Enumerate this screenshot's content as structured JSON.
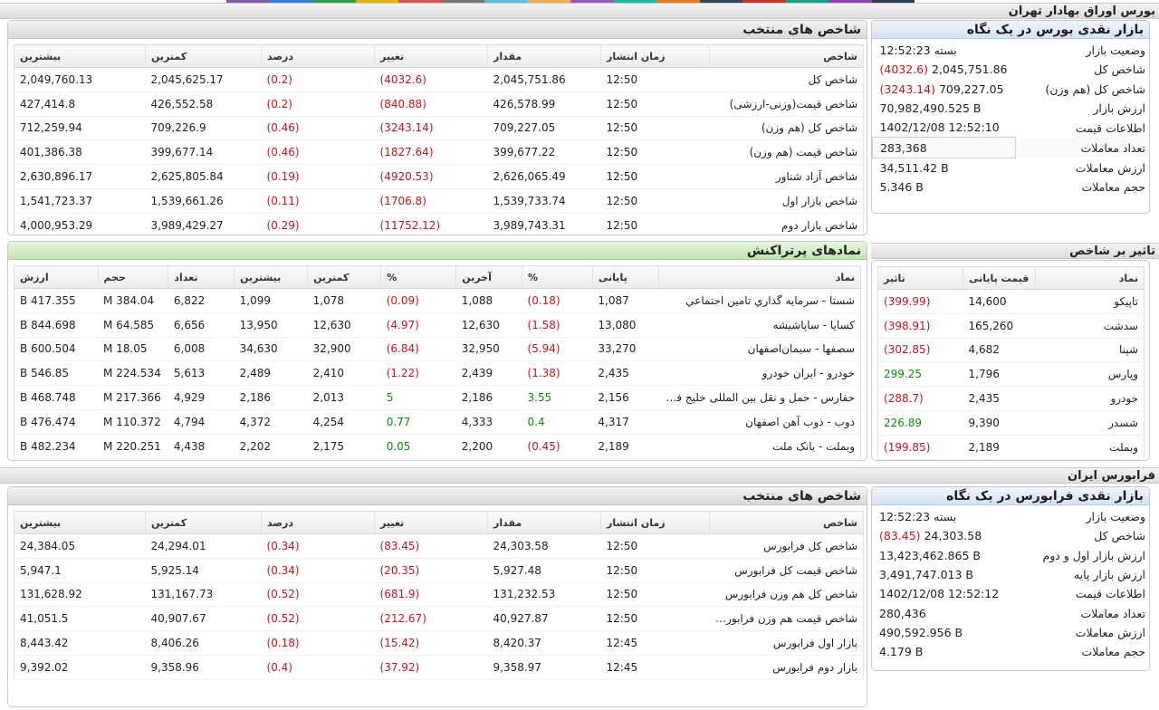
{
  "colors": {
    "strip": [
      "#7b5ea7",
      "#3b7dd8",
      "#2e9e4f",
      "#e0b400",
      "#d9534f",
      "#777777",
      "#5bc0de",
      "#f0ad4e",
      "#9b59b6",
      "#1abc9c",
      "#e67e22",
      "#34495e",
      "#c0392b",
      "#16a085",
      "#8e44ad",
      "#2c3e50"
    ],
    "negative": "#c4161c",
    "positive": "#0a8f0a"
  },
  "tse": {
    "bar_title": "بورس اوراق بهادار تهران",
    "glance": {
      "title": "بازار نقدی بورس در یک نگاه",
      "rows": [
        {
          "k": "وضعیت بازار",
          "v": "بسته 12:52:23",
          "chg": ""
        },
        {
          "k": "شاخص کل",
          "v": "2,045,751.86",
          "chg": "(4032.6)"
        },
        {
          "k": "شاخص کل (هم وزن)",
          "v": "709,227.05",
          "chg": "(3243.14)"
        },
        {
          "k": "ارزش بازار",
          "v": "70,982,490.525 B",
          "chg": ""
        },
        {
          "k": "اطلاعات قیمت",
          "v": "1402/12/08 12:52:10",
          "chg": ""
        },
        {
          "k": "تعداد معاملات",
          "v": "283,368",
          "chg": ""
        },
        {
          "k": "ارزش معاملات",
          "v": "34,511.42 B",
          "chg": ""
        },
        {
          "k": "حجم معاملات",
          "v": "5.346 B",
          "chg": ""
        }
      ]
    },
    "indices": {
      "title": "شاخص های منتخب",
      "headers": [
        "شاخص",
        "زمان انتشار",
        "مقدار",
        "تغییر",
        "درصد",
        "کمترین",
        "بیشترین"
      ],
      "rows": [
        [
          "شاخص کل",
          "12:50",
          "2,045,751.86",
          "(4032.6)",
          "(0.2)",
          "2,045,625.17",
          "2,049,760.13"
        ],
        [
          "شاخص قیمت(وزنی-ارزشی)",
          "12:50",
          "426,578.99",
          "(840.88)",
          "(0.2)",
          "426,552.58",
          "427,414.8"
        ],
        [
          "شاخص کل (هم وزن)",
          "12:50",
          "709,227.05",
          "(3243.14)",
          "(0.46)",
          "709,226.9",
          "712,259.94"
        ],
        [
          "شاخص قیمت (هم وزن)",
          "12:50",
          "399,677.22",
          "(1827.64)",
          "(0.46)",
          "399,677.14",
          "401,386.38"
        ],
        [
          "شاخص آزاد شناور",
          "12:50",
          "2,626,065.49",
          "(4920.53)",
          "(0.19)",
          "2,625,805.84",
          "2,630,896.17"
        ],
        [
          "شاخص بازار اول",
          "12:50",
          "1,539,733.74",
          "(1706.8)",
          "(0.11)",
          "1,539,661.26",
          "1,541,723.37"
        ],
        [
          "شاخص بازار دوم",
          "12:50",
          "3,989,743.31",
          "(11752.12)",
          "(0.29)",
          "3,989,429.27",
          "4,000,953.29"
        ]
      ]
    },
    "impact": {
      "bar_title": "تاثیر بر شاخص",
      "headers": [
        "نماد",
        "قیمت پایانی",
        "تاثیر"
      ],
      "rows": [
        [
          "تاپیکو",
          "14,600",
          "(399.99)"
        ],
        [
          "سدشت",
          "165,260",
          "(398.91)"
        ],
        [
          "شپنا",
          "4,682",
          "(302.85)"
        ],
        [
          "وپارس",
          "1,796",
          "299.25"
        ],
        [
          "خودرو",
          "2,435",
          "(288.7)"
        ],
        [
          "شسدر",
          "9,390",
          "226.89"
        ],
        [
          "وبملت",
          "2,189",
          "(199.85)"
        ]
      ]
    },
    "active": {
      "title": "نمادهای پرتراکنش",
      "headers": [
        "نماد",
        "پایانی",
        "%",
        "آخرین",
        "%",
        "کمترین",
        "بیشترین",
        "تعداد",
        "حجم",
        "ارزش"
      ],
      "rows": [
        [
          "شستا - سرمایه گذاري تامين اجتماعي",
          "1,087",
          "(0.18)",
          "1,088",
          "(0.09)",
          "1,078",
          "1,099",
          "6,822",
          "384.04 M",
          "417.355 B"
        ],
        [
          "کسایا - ساپاشیشه",
          "13,080",
          "(1.58)",
          "12,630",
          "(4.97)",
          "12,630",
          "13,950",
          "6,656",
          "64.585 M",
          "844.698 B"
        ],
        [
          "سصفها - سیمان‌اصفهان",
          "33,270",
          "(5.94)",
          "32,950",
          "(6.84)",
          "32,900",
          "34,630",
          "6,008",
          "18.05 M",
          "600.504 B"
        ],
        [
          "خودرو - ايران‌ خودرو",
          "2,435",
          "(1.38)",
          "2,439",
          "(1.22)",
          "2,410",
          "2,489",
          "5,613",
          "224.534 M",
          "546.85 B"
        ],
        [
          "حفارس - حمل و نقل بین المللی خلیج فارس",
          "2,156",
          "3.55",
          "2,186",
          "5",
          "2,013",
          "2,186",
          "4,929",
          "217.366 M",
          "468.748 B"
        ],
        [
          "ذوب - ذوب آهن اصفهان",
          "4,317",
          "0.4",
          "4,333",
          "0.77",
          "4,254",
          "4,372",
          "4,794",
          "110.372 M",
          "476.474 B"
        ],
        [
          "وبملت - بانک ملت",
          "2,189",
          "(0.45)",
          "2,200",
          "0.05",
          "2,175",
          "2,202",
          "4,438",
          "220.251 M",
          "482.234 B"
        ]
      ]
    }
  },
  "ifb": {
    "bar_title": "فرابورس ایران",
    "glance": {
      "title": "بازار نقدی فرابورس در یک نگاه",
      "rows": [
        {
          "k": "وضعیت بازار",
          "v": "بسته 12:52:23",
          "chg": ""
        },
        {
          "k": "شاخص کل",
          "v": "24,303.58",
          "chg": "(83.45)"
        },
        {
          "k": "ارزش بازار اول و دوم",
          "v": "13,423,462.865 B",
          "chg": ""
        },
        {
          "k": "ارزش بازار پایه",
          "v": "3,491,747.013 B",
          "chg": ""
        },
        {
          "k": "اطلاعات قیمت",
          "v": "1402/12/08 12:52:12",
          "chg": ""
        },
        {
          "k": "تعداد معاملات",
          "v": "280,436",
          "chg": ""
        },
        {
          "k": "ارزش معاملات",
          "v": "490,592.956 B",
          "chg": ""
        },
        {
          "k": "حجم معاملات",
          "v": "4.179 B",
          "chg": ""
        }
      ]
    },
    "indices": {
      "title": "شاخص های منتخب",
      "headers": [
        "شاخص",
        "زمان انتشار",
        "مقدار",
        "تغییر",
        "درصد",
        "کمترین",
        "بیشترین"
      ],
      "rows": [
        [
          "شاخص کل فرابورس",
          "12:50",
          "24,303.58",
          "(83.45)",
          "(0.34)",
          "24,294.01",
          "24,384.05"
        ],
        [
          "شاخص قیمت کل فرابورس",
          "12:50",
          "5,927.48",
          "(20.35)",
          "(0.34)",
          "5,925.14",
          "5,947.1"
        ],
        [
          "شاخص کل هم وزن فرابورس",
          "12:50",
          "131,232.53",
          "(681.9)",
          "(0.52)",
          "131,167.73",
          "131,628.92"
        ],
        [
          "شاخص قیمت هم وزن فرابورس",
          "12:50",
          "40,927.87",
          "(212.67)",
          "(0.52)",
          "40,907.67",
          "41,051.5"
        ],
        [
          "بازار اول فرابورس",
          "12:45",
          "8,420.37",
          "(15.42)",
          "(0.18)",
          "8,406.26",
          "8,443.42"
        ],
        [
          "بازار دوم فرابورس",
          "12:45",
          "9,358.97",
          "(37.92)",
          "(0.4)",
          "9,358.96",
          "9,392.02"
        ]
      ]
    }
  }
}
